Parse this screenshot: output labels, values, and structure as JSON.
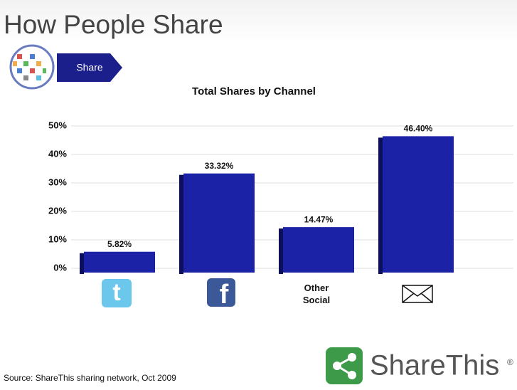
{
  "header": {
    "title": "How People Share",
    "button": "Share"
  },
  "chart_data": {
    "type": "bar",
    "title": "Total Shares by Channel",
    "categories": [
      null,
      null,
      "Other Social",
      null
    ],
    "values": [
      5.82,
      33.32,
      14.47,
      46.4
    ],
    "value_labels": [
      "5.82%",
      "33.32%",
      "14.47%",
      "46.40%"
    ],
    "color": "#1c22a6",
    "ylim": [
      0,
      50
    ],
    "yticks": [
      {
        "value": 0,
        "label": "0%"
      },
      {
        "value": 10,
        "label": "10%"
      },
      {
        "value": 20,
        "label": "20%"
      },
      {
        "value": 30,
        "label": "30%"
      },
      {
        "value": 40,
        "label": "40%"
      },
      {
        "value": 50,
        "label": "50%"
      }
    ],
    "grid": true
  },
  "footer": {
    "source": "Source: ShareThis sharing network, Oct 2009",
    "logo": "ShareThis",
    "logo_mark": "®"
  }
}
